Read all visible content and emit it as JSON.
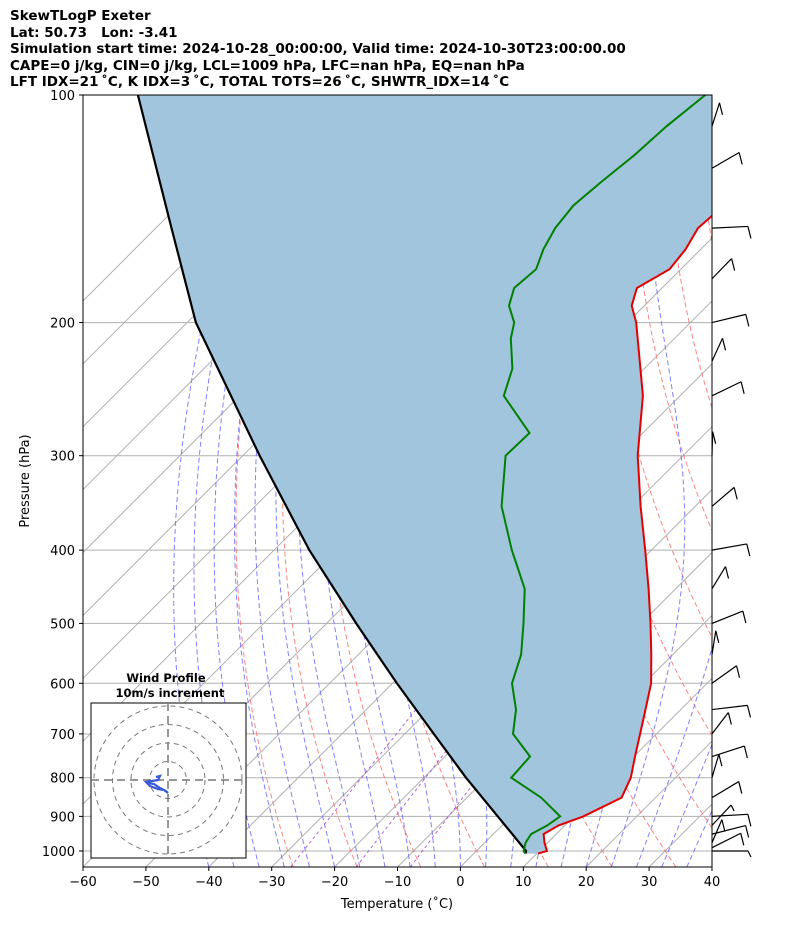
{
  "header": {
    "title": "SkewTLogP Exeter",
    "location": "Lat: 50.73   Lon: -3.41",
    "times": "Simulation start time: 2024-10-28_00:00:00, Valid time: 2024-10-30T23:00:00.00",
    "params1": "CAPE=0 j/kg, CIN=0 j/kg, LCL=1009 hPa, LFC=nan hPa, EQ=nan hPa",
    "params2": "LFT IDX=21 ˚C, K IDX=3 ˚C, TOTAL TOTS=26 ˚C, SHWTR_IDX=14 ˚C"
  },
  "colors": {
    "temperature": "#e50000",
    "dewpoint": "#008000",
    "parcel": "#000000",
    "shade": "#a2c5de",
    "dry_adiabat": "#ff6666",
    "moist_adiabat": "#6a6aff",
    "mixing_ratio": "#a03cc8",
    "isotherm": "#b0b0b0",
    "wind_trace": "#3b5bdb"
  },
  "chart_data": {
    "type": "skew-t log-p",
    "xlabel": "Temperature (˚C)",
    "ylabel": "Pressure (hPa)",
    "xlim": [
      -60,
      40
    ],
    "ylim": [
      1050,
      100
    ],
    "y_scale": "log",
    "x_ticks": [
      -60,
      -50,
      -40,
      -30,
      -20,
      -10,
      0,
      10,
      20,
      30,
      40
    ],
    "x_tick_labels": [
      "−60",
      "−50",
      "−40",
      "−30",
      "−20",
      "−10",
      "0",
      "10",
      "20",
      "30",
      "40"
    ],
    "y_ticks": [
      1000,
      900,
      800,
      700,
      600,
      500,
      400,
      300,
      200,
      100
    ],
    "y_tick_labels": [
      "1000",
      "900",
      "800",
      "700",
      "600",
      "500",
      "400",
      "300",
      "200",
      "100"
    ],
    "grid": true,
    "series": [
      {
        "kind": "temperature",
        "p": [
          1008,
          1000,
          975,
          950,
          925,
          900,
          850,
          800,
          750,
          700,
          650,
          600,
          550,
          500,
          450,
          400,
          350,
          300,
          250,
          200,
          190,
          180,
          170,
          160,
          150,
          140,
          130,
          120,
          110,
          100
        ],
        "t": [
          10.2,
          11.2,
          9.5,
          8.0,
          9.0,
          11.5,
          14.6,
          12.9,
          10.2,
          7.4,
          4.4,
          1.1,
          -3.4,
          -8.5,
          -14.3,
          -21.0,
          -28.7,
          -37.2,
          -45.9,
          -58.6,
          -62.0,
          -64.0,
          -61.8,
          -62.4,
          -63.8,
          -63.3,
          -64.2,
          -63.5,
          -64.0,
          -64.9
        ]
      },
      {
        "kind": "dewpoint",
        "p": [
          1008,
          1000,
          975,
          950,
          925,
          900,
          850,
          800,
          750,
          700,
          650,
          600,
          550,
          500,
          450,
          400,
          350,
          300,
          280,
          250,
          230,
          210,
          200,
          190,
          180,
          170,
          160,
          150,
          140,
          130,
          120,
          110,
          100
        ],
        "t": [
          8.2,
          7.5,
          6.5,
          6.0,
          7.2,
          7.8,
          1.8,
          -6.1,
          -6.5,
          -12.8,
          -16.2,
          -21.0,
          -24.1,
          -28.7,
          -34.0,
          -42.2,
          -50.8,
          -58.2,
          -58.0,
          -68.0,
          -71.0,
          -76.0,
          -78.0,
          -81.5,
          -83.5,
          -83.0,
          -85.0,
          -86.5,
          -87.2,
          -86.5,
          -85.5,
          -85.0,
          -83.8
        ]
      },
      {
        "kind": "parcel",
        "p": [
          1008,
          1000,
          900,
          800,
          700,
          600,
          500,
          400,
          300,
          200,
          150,
          100
        ],
        "t": [
          8.2,
          7.9,
          -2.1,
          -13.3,
          -25.4,
          -39.3,
          -55.3,
          -74.4,
          -97.3,
          -128.6,
          -147.5,
          -174.0
        ]
      }
    ],
    "wind_barbs": {
      "p": [
        1000,
        990,
        975,
        950,
        925,
        900,
        850,
        800,
        750,
        700,
        650,
        600,
        550,
        500,
        450,
        400,
        350,
        300,
        250,
        225,
        200,
        175,
        150,
        125,
        110
      ],
      "barb_kind": [
        "half",
        "full",
        "full",
        "full",
        "half",
        "full",
        "full",
        "full",
        "full",
        "full",
        "full",
        "full",
        "full",
        "full",
        "full",
        "full",
        "full",
        "full",
        "full",
        "full",
        "full",
        "full",
        "full",
        "full",
        "full"
      ]
    },
    "inset": {
      "title": "Wind Profile",
      "subtitle": "10m/s increment",
      "rings": [
        10,
        20,
        30,
        40
      ]
    }
  }
}
